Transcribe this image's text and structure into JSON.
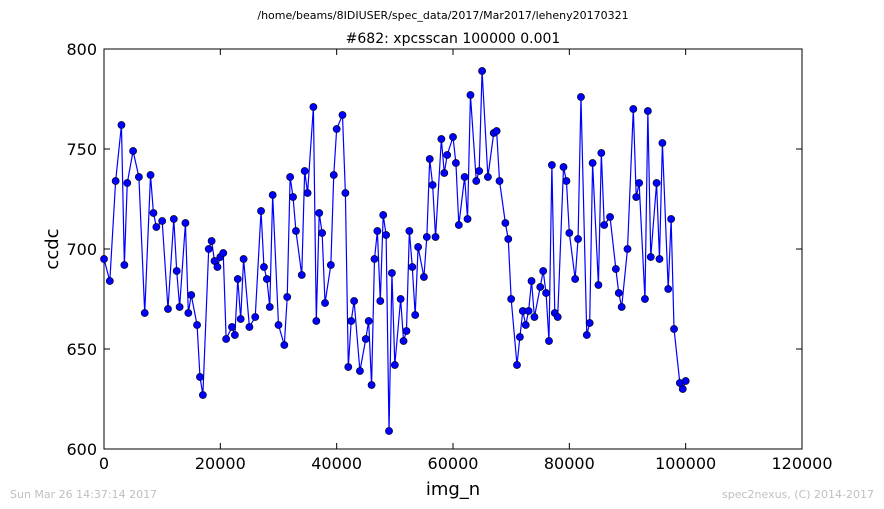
{
  "header": {
    "path": "/home/beams/8IDIUSER/spec_data/2017/Mar2017/leheny20170321"
  },
  "footer": {
    "left": "Sun Mar 26 14:37:14 2017",
    "right": "spec2nexus, (C) 2014-2017"
  },
  "chart_data": {
    "type": "line",
    "title": "#682: xpcsscan 100000 0.001",
    "xlabel": "img_n",
    "ylabel": "ccdc",
    "xlim": [
      0,
      120000
    ],
    "ylim": [
      600,
      800
    ],
    "xticks": [
      0,
      20000,
      40000,
      60000,
      80000,
      100000,
      120000
    ],
    "yticks": [
      600,
      650,
      700,
      750,
      800
    ],
    "grid": false,
    "marker": "circle",
    "color": "#0000ff",
    "series": [
      {
        "x": [
          0,
          1000,
          2000,
          3000,
          3500,
          4000,
          5000,
          6000,
          7000,
          8000,
          8500,
          9000,
          10000,
          11000,
          12000,
          12500,
          13000,
          14000,
          14500,
          15000,
          16000,
          16500,
          17000,
          18000,
          18500,
          19000,
          19500,
          20000,
          20500,
          21000,
          22000,
          22500,
          23000,
          23500,
          24000,
          25000,
          26000,
          27000,
          27500,
          28000,
          28500,
          29000,
          30000,
          31000,
          31500,
          32000,
          32500,
          33000,
          34000,
          34500,
          35000,
          36000,
          36500,
          37000,
          37500,
          38000,
          39000,
          39500,
          40000,
          41000,
          41500,
          42000,
          42500,
          43000,
          44000,
          45000,
          45500,
          46000,
          46500,
          47000,
          47500,
          48000,
          48500,
          49000,
          49500,
          50000,
          51000,
          51500,
          52000,
          52500,
          53000,
          53500,
          54000,
          55000,
          55500,
          56000,
          56500,
          57000,
          58000,
          58500,
          59000,
          60000,
          60500,
          61000,
          62000,
          62500,
          63000,
          64000,
          64500,
          65000,
          66000,
          67000,
          67500,
          68000,
          69000,
          69500,
          70000,
          71000,
          71500,
          72000,
          72500,
          73000,
          73500,
          74000,
          75000,
          75500,
          76000,
          76500,
          77000,
          77500,
          78000,
          79000,
          79500,
          80000,
          81000,
          81500,
          82000,
          83000,
          83500,
          84000,
          85000,
          85500,
          86000,
          87000,
          88000,
          88500,
          89000,
          90000,
          91000,
          91500,
          92000,
          93000,
          93500,
          94000,
          95000,
          95500,
          96000,
          97000,
          97500,
          98000,
          99000,
          99500,
          100000
        ],
        "values": [
          695,
          684,
          734,
          762,
          692,
          733,
          749,
          736,
          668,
          737,
          718,
          711,
          714,
          670,
          715,
          689,
          671,
          713,
          668,
          677,
          662,
          636,
          627,
          700,
          704,
          694,
          691,
          696,
          698,
          655,
          661,
          657,
          685,
          665,
          695,
          661,
          666,
          719,
          691,
          685,
          671,
          727,
          662,
          652,
          676,
          736,
          726,
          709,
          687,
          739,
          728,
          771,
          664,
          718,
          708,
          673,
          692,
          737,
          760,
          767,
          728,
          641,
          664,
          674,
          639,
          655,
          664,
          632,
          695,
          709,
          674,
          717,
          707,
          609,
          688,
          642,
          675,
          654,
          659,
          709,
          691,
          667,
          701,
          686,
          706,
          745,
          732,
          706,
          755,
          738,
          747,
          756,
          743,
          712,
          736,
          715,
          777,
          734,
          739,
          789,
          736,
          758,
          759,
          734,
          713,
          705,
          675,
          642,
          656,
          669,
          662,
          669,
          684,
          666,
          681,
          689,
          678,
          654,
          742,
          668,
          666,
          741,
          734,
          708,
          685,
          705,
          776,
          657,
          663,
          743,
          682,
          748,
          712,
          716,
          690,
          678,
          671,
          700,
          770,
          726,
          733,
          675,
          769,
          696,
          733,
          695,
          753,
          680,
          715,
          660,
          633,
          630,
          634
        ]
      }
    ]
  }
}
